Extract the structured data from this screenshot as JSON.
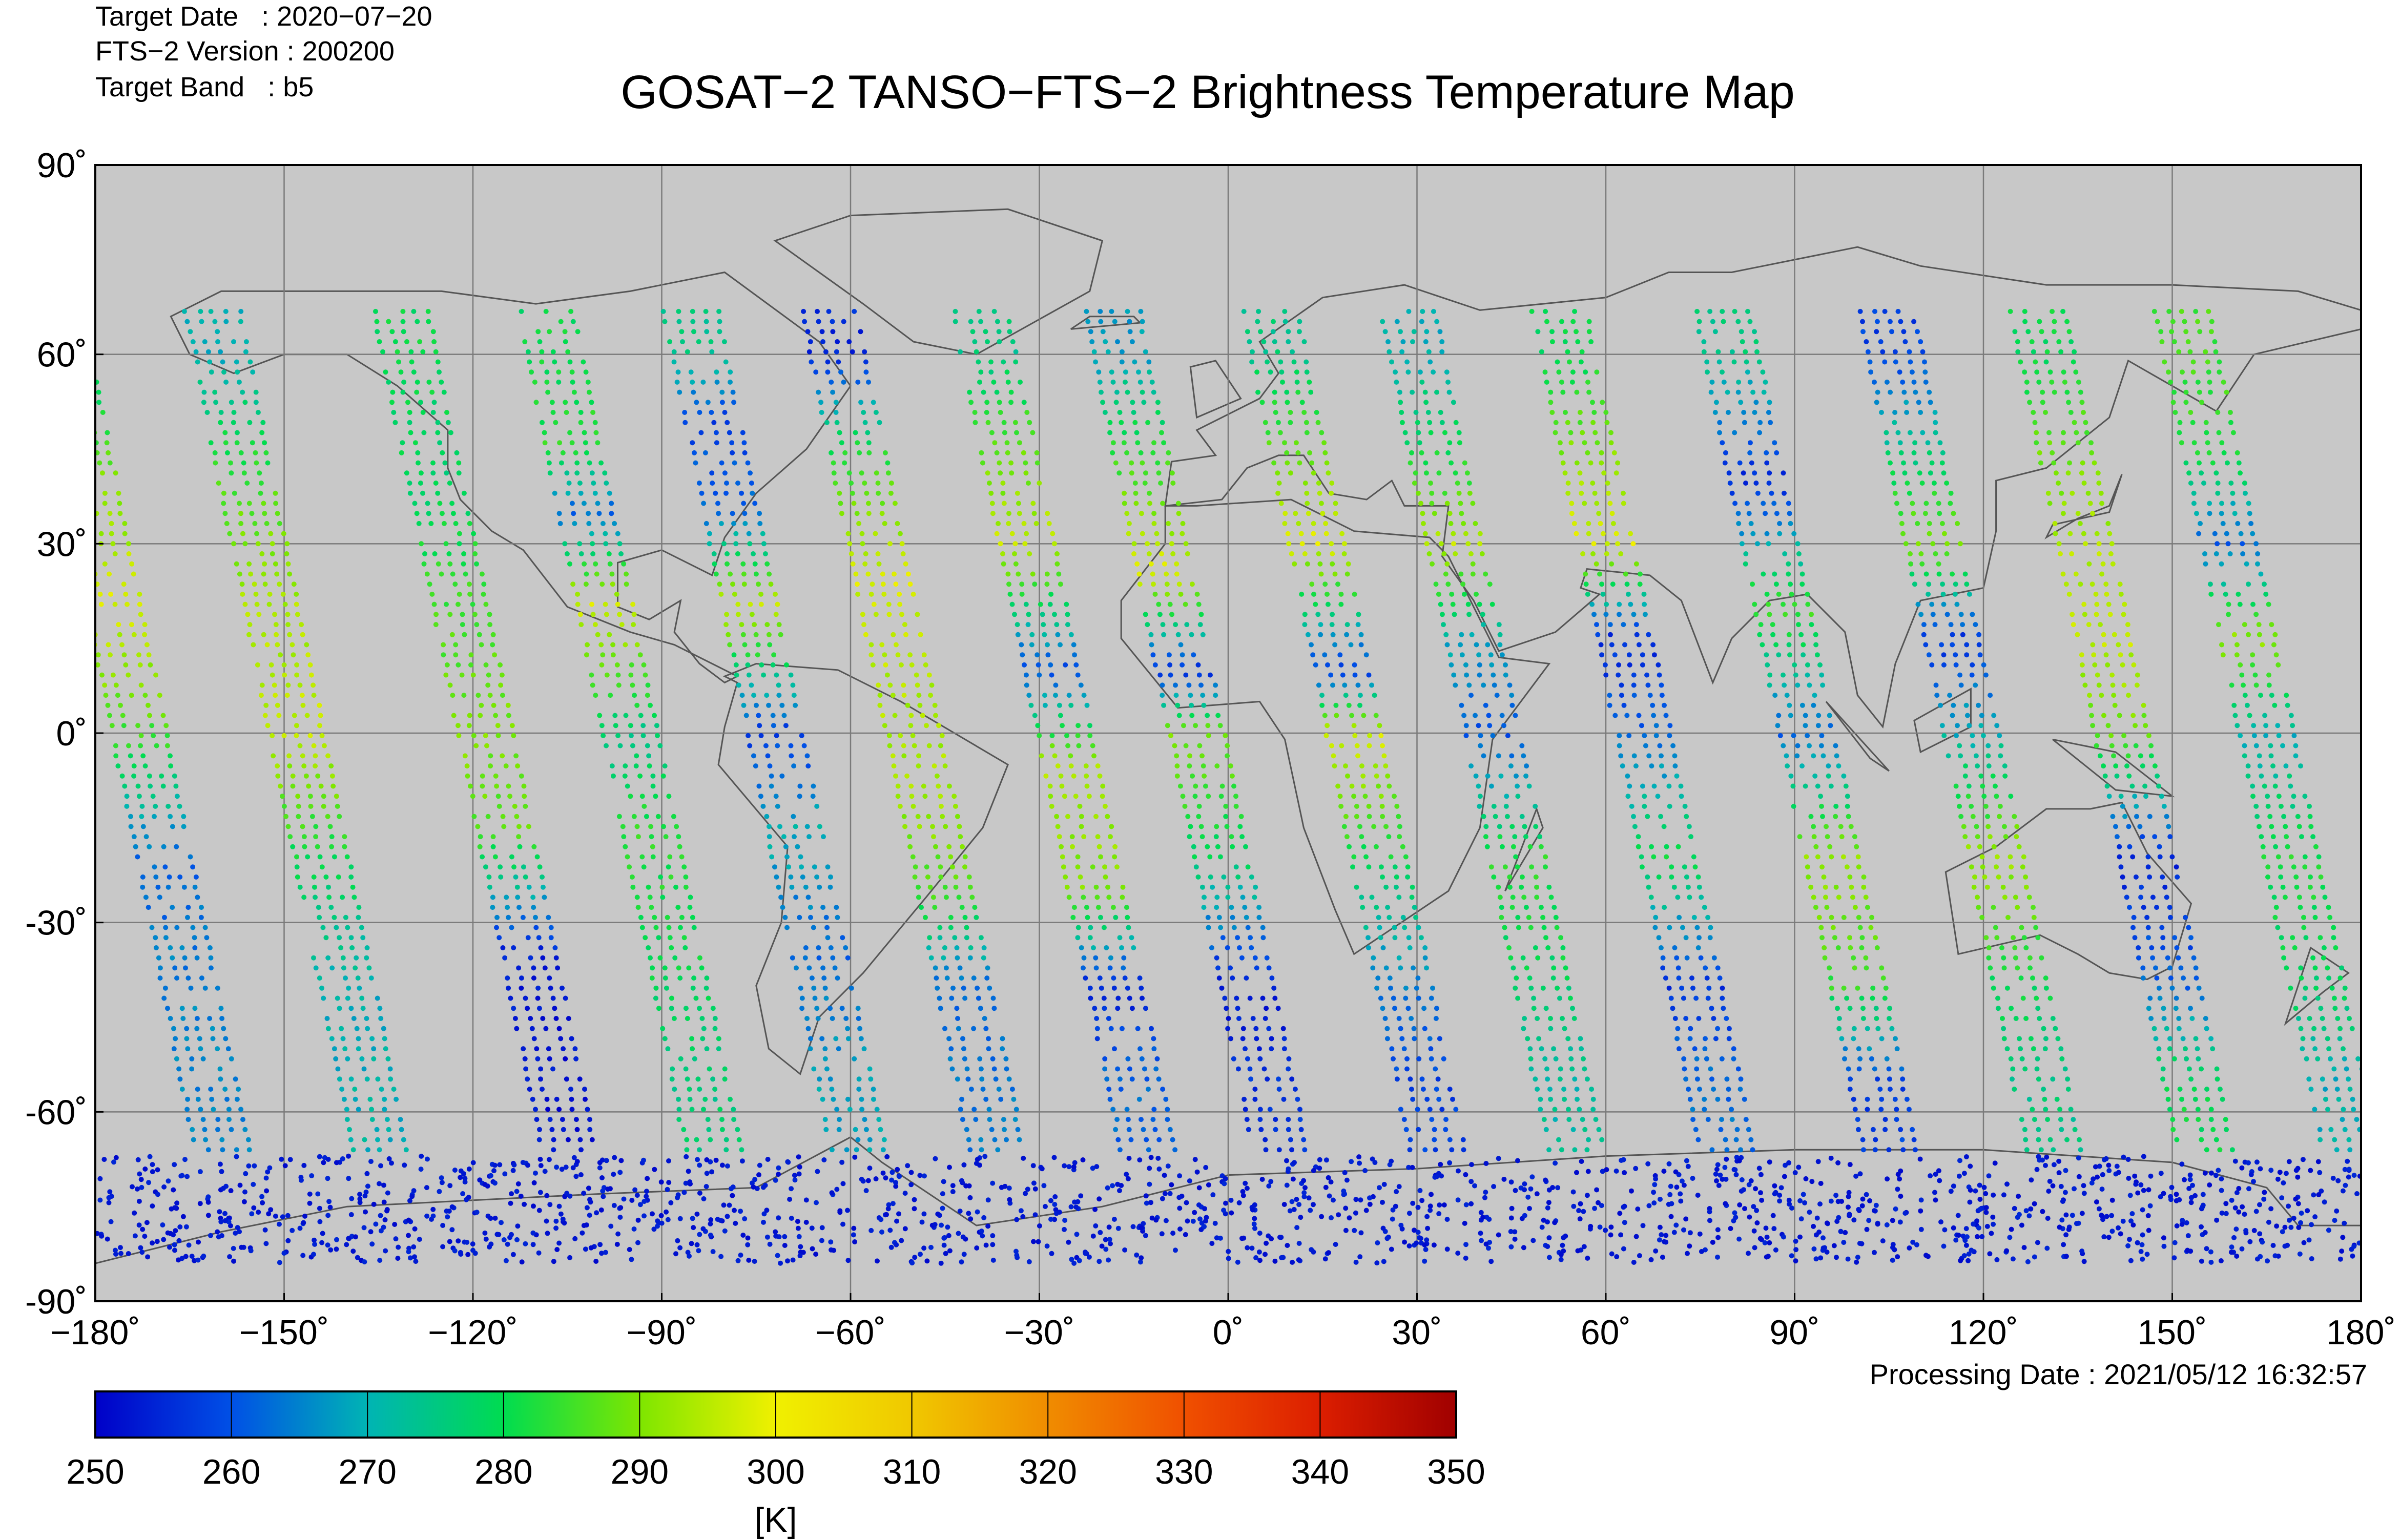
{
  "header": {
    "target_date": "Target Date   : 2020−07−20",
    "version": "FTS−2 Version : 200200",
    "band": "Target Band   : b5",
    "title": "GOSAT−2 TANSO−FTS−2 Brightness Temperature Map",
    "processing_date": "Processing Date : 2021/05/12 16:32:57"
  },
  "colors": {
    "map_background": "#c8c8c8",
    "grid": "#7a7a7a",
    "coastline": "#555555"
  },
  "chart_data": {
    "type": "scatter",
    "map_projection": "equirectangular",
    "xlim": [
      -180,
      180
    ],
    "ylim": [
      -90,
      90
    ],
    "x_ticks": [
      -180,
      -150,
      -120,
      -90,
      -60,
      -30,
      0,
      30,
      60,
      90,
      120,
      150,
      180
    ],
    "y_ticks": [
      90,
      60,
      30,
      0,
      -30,
      -60,
      -90
    ],
    "x_tick_labels": [
      "−180˚",
      "−150˚",
      "−120˚",
      "−90˚",
      "−60˚",
      "−30˚",
      "0˚",
      "30˚",
      "60˚",
      "90˚",
      "120˚",
      "150˚",
      "180˚"
    ],
    "y_tick_labels": [
      "90˚",
      "60˚",
      "30˚",
      "0˚",
      "-30˚",
      "-60˚",
      "-90˚"
    ],
    "grid": true,
    "colorbar": {
      "min": 250,
      "max": 350,
      "unit_label": "[K]",
      "tick_values": [
        250,
        260,
        270,
        280,
        290,
        300,
        310,
        320,
        330,
        340,
        350
      ],
      "tick_labels": [
        "250",
        "260",
        "270",
        "280",
        "290",
        "300",
        "310",
        "320",
        "330",
        "340",
        "350"
      ],
      "colormap": [
        "#0000c8",
        "#0050e6",
        "#00b4b4",
        "#00dc50",
        "#7ee600",
        "#f0f000",
        "#f0c800",
        "#f08c00",
        "#f05000",
        "#dc1e00",
        "#a00000"
      ]
    },
    "tracks": [
      {
        "lon_at_equator": -173,
        "values": [
          [
            -40,
            265
          ],
          [
            -20,
            262
          ],
          [
            0,
            285
          ],
          [
            20,
            298
          ],
          [
            40,
            290
          ],
          [
            60,
            275
          ]
        ]
      },
      {
        "lon_at_equator": -148,
        "values": [
          [
            -40,
            270
          ],
          [
            -20,
            280
          ],
          [
            0,
            296
          ],
          [
            20,
            294
          ],
          [
            40,
            285
          ],
          [
            60,
            270
          ]
        ]
      },
      {
        "lon_at_equator": -118,
        "values": [
          [
            -55,
            252
          ],
          [
            -35,
            254
          ],
          [
            -15,
            287
          ],
          [
            0,
            290
          ],
          [
            20,
            285
          ],
          [
            40,
            278
          ],
          [
            60,
            280
          ]
        ]
      },
      {
        "lon_at_equator": -95,
        "values": [
          [
            -55,
            276
          ],
          [
            -35,
            280
          ],
          [
            -15,
            283
          ],
          [
            0,
            275
          ],
          [
            20,
            298
          ],
          [
            35,
            262
          ],
          [
            45,
            283
          ],
          [
            60,
            280
          ]
        ]
      },
      {
        "lon_at_equator": -72,
        "values": [
          [
            -55,
            268
          ],
          [
            -35,
            262
          ],
          [
            -15,
            270
          ],
          [
            0,
            257
          ],
          [
            20,
            296
          ],
          [
            35,
            262
          ],
          [
            50,
            258
          ],
          [
            60,
            275
          ]
        ]
      },
      {
        "lon_at_equator": -50,
        "values": [
          [
            -55,
            264
          ],
          [
            -40,
            262
          ],
          [
            -25,
            286
          ],
          [
            -10,
            293
          ],
          [
            5,
            294
          ],
          [
            25,
            298
          ],
          [
            45,
            282
          ],
          [
            60,
            255
          ]
        ]
      },
      {
        "lon_at_equator": -26,
        "values": [
          [
            -55,
            262
          ],
          [
            -40,
            254
          ],
          [
            -25,
            290
          ],
          [
            -5,
            294
          ],
          [
            10,
            259
          ],
          [
            30,
            296
          ],
          [
            50,
            284
          ],
          [
            60,
            275
          ]
        ]
      },
      {
        "lon_at_equator": -5,
        "values": [
          [
            -55,
            256
          ],
          [
            -40,
            253
          ],
          [
            -20,
            278
          ],
          [
            0,
            290
          ],
          [
            10,
            255
          ],
          [
            25,
            298
          ],
          [
            45,
            283
          ],
          [
            60,
            268
          ]
        ]
      },
      {
        "lon_at_equator": 20,
        "values": [
          [
            -55,
            258
          ],
          [
            -40,
            264
          ],
          [
            -20,
            280
          ],
          [
            0,
            298
          ],
          [
            10,
            257
          ],
          [
            30,
            298
          ],
          [
            45,
            288
          ],
          [
            60,
            275
          ]
        ]
      },
      {
        "lon_at_equator": 42,
        "values": [
          [
            -55,
            272
          ],
          [
            -40,
            278
          ],
          [
            -20,
            283
          ],
          [
            0,
            260
          ],
          [
            15,
            270
          ],
          [
            30,
            295
          ],
          [
            45,
            280
          ],
          [
            60,
            270
          ]
        ]
      },
      {
        "lon_at_equator": 66,
        "values": [
          [
            -55,
            263
          ],
          [
            -40,
            256
          ],
          [
            -20,
            280
          ],
          [
            0,
            262
          ],
          [
            15,
            255
          ],
          [
            30,
            298
          ],
          [
            45,
            290
          ],
          [
            60,
            280
          ]
        ]
      },
      {
        "lon_at_equator": 92,
        "values": [
          [
            -55,
            258
          ],
          [
            -40,
            284
          ],
          [
            -20,
            292
          ],
          [
            0,
            262
          ],
          [
            20,
            285
          ],
          [
            40,
            255
          ],
          [
            60,
            275
          ]
        ]
      },
      {
        "lon_at_equator": 118,
        "values": [
          [
            -55,
            275
          ],
          [
            -40,
            280
          ],
          [
            -20,
            293
          ],
          [
            0,
            270
          ],
          [
            15,
            256
          ],
          [
            30,
            290
          ],
          [
            45,
            275
          ],
          [
            60,
            258
          ]
        ]
      },
      {
        "lon_at_equator": 142,
        "values": [
          [
            -55,
            280
          ],
          [
            -40,
            262
          ],
          [
            -20,
            254
          ],
          [
            0,
            288
          ],
          [
            15,
            296
          ],
          [
            30,
            294
          ],
          [
            45,
            288
          ],
          [
            60,
            280
          ]
        ]
      },
      {
        "lon_at_equator": 165,
        "values": [
          [
            -55,
            270
          ],
          [
            -40,
            278
          ],
          [
            -20,
            282
          ],
          [
            0,
            270
          ],
          [
            15,
            292
          ],
          [
            30,
            262
          ],
          [
            45,
            283
          ],
          [
            60,
            285
          ]
        ]
      }
    ],
    "antarctic_band": {
      "lat_range": [
        -84,
        -67
      ],
      "value": 253
    }
  }
}
